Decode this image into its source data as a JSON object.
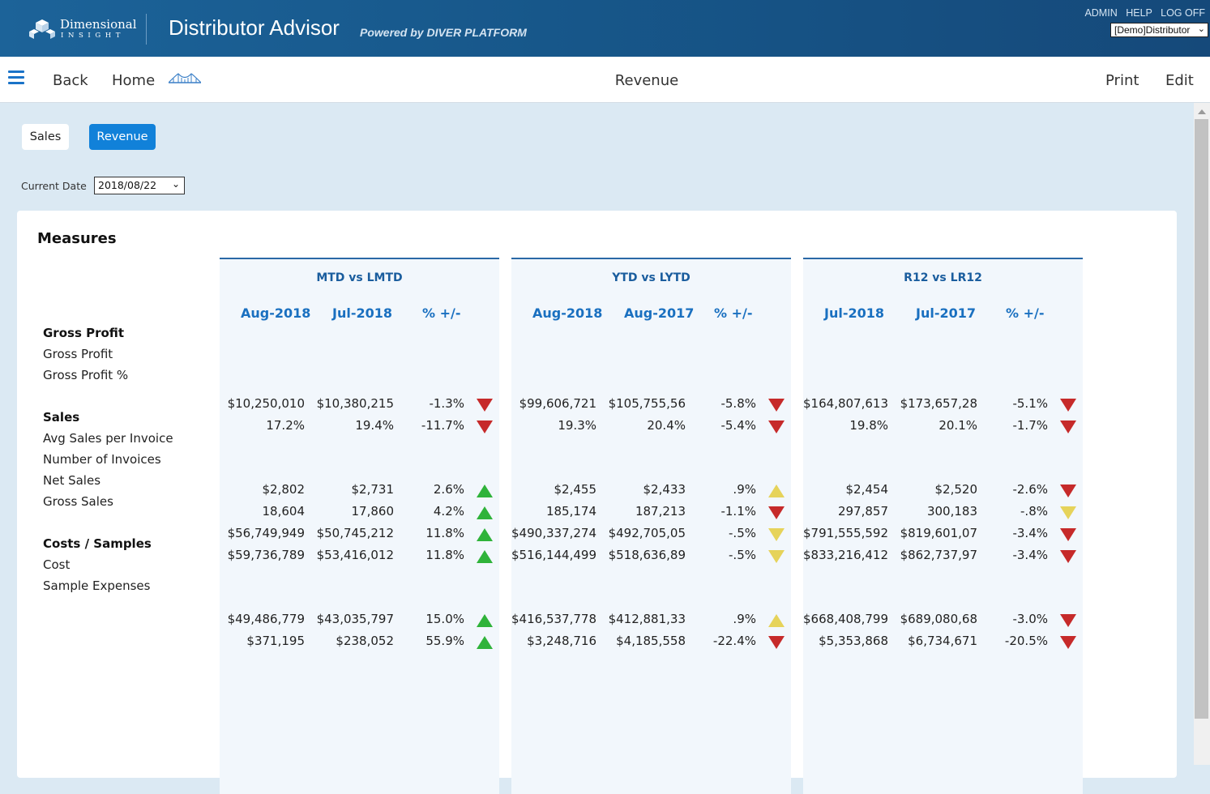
{
  "header": {
    "logo_name": "Dimensional",
    "logo_sub": "INSIGHT",
    "app_title": "Distributor Advisor",
    "powered_by": "Powered by DIVER PLATFORM",
    "links": [
      "ADMIN",
      "HELP",
      "LOG OFF"
    ],
    "distributor_select": "[Demo]Distributor"
  },
  "nav": {
    "back": "Back",
    "home": "Home",
    "page_title": "Revenue",
    "print": "Print",
    "edit": "Edit"
  },
  "tabs": [
    "Sales",
    "Revenue"
  ],
  "active_tab": "Revenue",
  "current_date": {
    "label": "Current Date",
    "value": "2018/08/22"
  },
  "card": {
    "title": "Measures",
    "sections": [
      {
        "title": "Gross Profit",
        "measures": [
          "Gross Profit",
          "Gross Profit %"
        ]
      },
      {
        "title": "Sales",
        "measures": [
          "Avg Sales per Invoice",
          "Number of Invoices",
          "Net Sales",
          "Gross Sales"
        ]
      },
      {
        "title": "Costs / Samples",
        "measures": [
          "Cost",
          "Sample Expenses"
        ]
      }
    ]
  },
  "panels": [
    {
      "title": "MTD vs LMTD",
      "headers": [
        "Aug-2018",
        "Jul-2018",
        "% +/-"
      ],
      "rows": [
        {
          "cur": "$10,250,010",
          "prev": "$10,380,215",
          "pct": "-1.3%",
          "trend": "down",
          "color": "#c62a2a"
        },
        {
          "cur": "17.2%",
          "prev": "19.4%",
          "pct": "-11.7%",
          "trend": "down",
          "color": "#c62a2a"
        },
        {
          "cur": "$2,802",
          "prev": "$2,731",
          "pct": "2.6%",
          "trend": "up",
          "color": "#2fb33a"
        },
        {
          "cur": "18,604",
          "prev": "17,860",
          "pct": "4.2%",
          "trend": "up",
          "color": "#2fb33a"
        },
        {
          "cur": "$56,749,949",
          "prev": "$50,745,212",
          "pct": "11.8%",
          "trend": "up",
          "color": "#2fb33a"
        },
        {
          "cur": "$59,736,789",
          "prev": "$53,416,012",
          "pct": "11.8%",
          "trend": "up",
          "color": "#2fb33a"
        },
        {
          "cur": "$49,486,779",
          "prev": "$43,035,797",
          "pct": "15.0%",
          "trend": "up",
          "color": "#2fb33a"
        },
        {
          "cur": "$371,195",
          "prev": "$238,052",
          "pct": "55.9%",
          "trend": "up",
          "color": "#2fb33a"
        }
      ]
    },
    {
      "title": "YTD vs LYTD",
      "headers": [
        "Aug-2018",
        "Aug-2017",
        "% +/-"
      ],
      "rows": [
        {
          "cur": "$99,606,721",
          "prev": "$105,755,56",
          "pct": "-5.8%",
          "trend": "down",
          "color": "#c62a2a"
        },
        {
          "cur": "19.3%",
          "prev": "20.4%",
          "pct": "-5.4%",
          "trend": "down",
          "color": "#c62a2a"
        },
        {
          "cur": "$2,455",
          "prev": "$2,433",
          "pct": ".9%",
          "trend": "up",
          "color": "#e6d35a"
        },
        {
          "cur": "185,174",
          "prev": "187,213",
          "pct": "-1.1%",
          "trend": "down",
          "color": "#c62a2a"
        },
        {
          "cur": "$490,337,274",
          "prev": "$492,705,05",
          "pct": "-.5%",
          "trend": "down",
          "color": "#e6d35a"
        },
        {
          "cur": "$516,144,499",
          "prev": "$518,636,89",
          "pct": "-.5%",
          "trend": "down",
          "color": "#e6d35a"
        },
        {
          "cur": "$416,537,778",
          "prev": "$412,881,33",
          "pct": ".9%",
          "trend": "up",
          "color": "#e6d35a"
        },
        {
          "cur": "$3,248,716",
          "prev": "$4,185,558",
          "pct": "-22.4%",
          "trend": "down",
          "color": "#c62a2a"
        }
      ]
    },
    {
      "title": "R12 vs LR12",
      "headers": [
        "Jul-2018",
        "Jul-2017",
        "% +/-"
      ],
      "rows": [
        {
          "cur": "$164,807,613",
          "prev": "$173,657,28",
          "pct": "-5.1%",
          "trend": "down",
          "color": "#c62a2a"
        },
        {
          "cur": "19.8%",
          "prev": "20.1%",
          "pct": "-1.7%",
          "trend": "down",
          "color": "#c62a2a"
        },
        {
          "cur": "$2,454",
          "prev": "$2,520",
          "pct": "-2.6%",
          "trend": "down",
          "color": "#c62a2a"
        },
        {
          "cur": "297,857",
          "prev": "300,183",
          "pct": "-.8%",
          "trend": "down",
          "color": "#e6d35a"
        },
        {
          "cur": "$791,555,592",
          "prev": "$819,601,07",
          "pct": "-3.4%",
          "trend": "down",
          "color": "#c62a2a"
        },
        {
          "cur": "$833,216,412",
          "prev": "$862,737,97",
          "pct": "-3.4%",
          "trend": "down",
          "color": "#c62a2a"
        },
        {
          "cur": "$668,408,799",
          "prev": "$689,080,68",
          "pct": "-3.0%",
          "trend": "down",
          "color": "#c62a2a"
        },
        {
          "cur": "$5,353,868",
          "prev": "$6,734,671",
          "pct": "-20.5%",
          "trend": "down",
          "color": "#c62a2a"
        }
      ]
    }
  ]
}
